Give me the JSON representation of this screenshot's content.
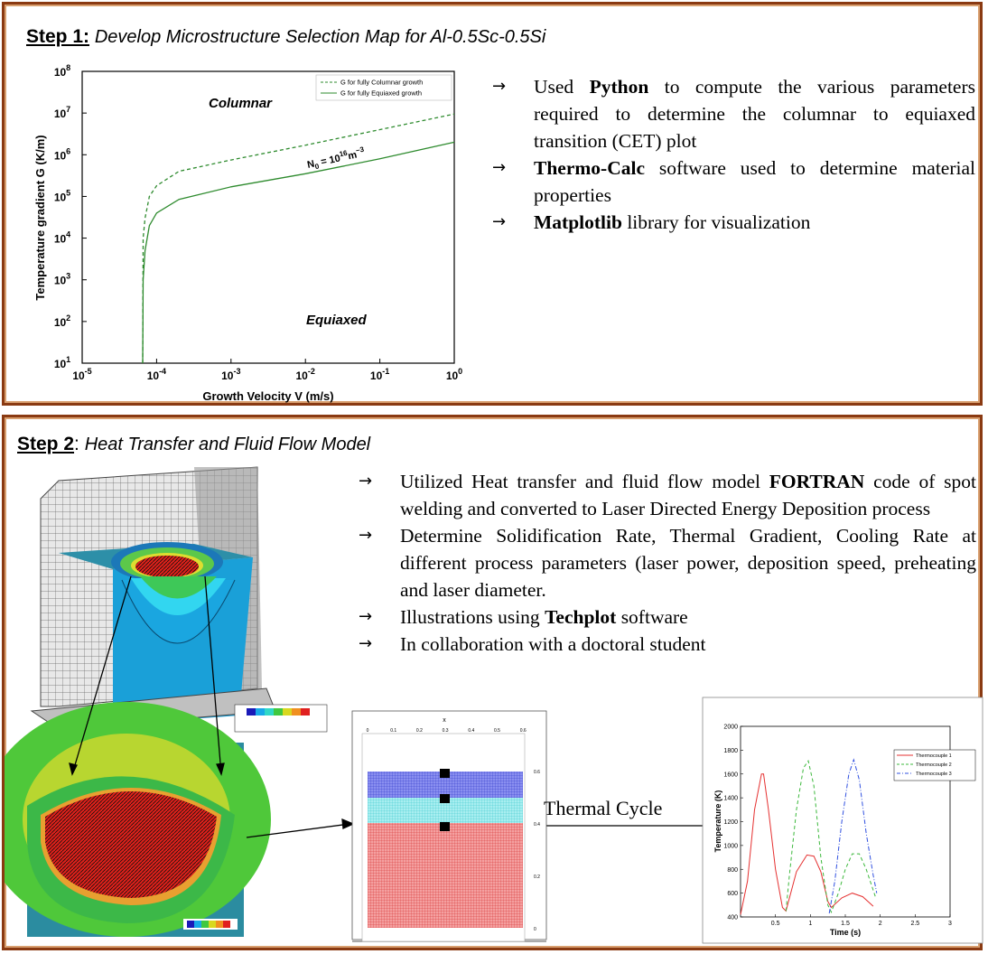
{
  "step1": {
    "label": "Step 1:",
    "title": "Develop Microstructure Selection Map for Al-0.5Sc-0.5Si",
    "bullets": [
      {
        "bold": "Python",
        "pre": "Used ",
        "post": " to compute the various parameters required to determine the columnar to equiaxed transition (CET) plot"
      },
      {
        "bold": "Thermo-Calc",
        "pre": "",
        "post": " software used to determine material properties"
      },
      {
        "bold": "Matplotlib",
        "pre": "",
        "post": " library for visualization"
      }
    ]
  },
  "step2": {
    "label": "Step 2",
    "sep": ": ",
    "title": "Heat Transfer and Fluid Flow Model",
    "bullets": [
      {
        "pre": "Utilized Heat transfer and fluid flow model ",
        "bold": "FORTRAN",
        "post": " code of spot welding and converted to Laser Directed Energy Deposition process"
      },
      {
        "pre": "Determine Solidification Rate, Thermal Gradient, Cooling Rate at different process parameters (laser power, deposition speed, preheating and laser diameter.",
        "bold": "",
        "post": ""
      },
      {
        "pre": "Illustrations using ",
        "bold": "Techplot",
        "post": " software"
      },
      {
        "pre": "In collaboration with a doctoral student",
        "bold": "",
        "post": ""
      }
    ],
    "thermal_cycle_label": "Thermal Cycle",
    "mesh_axis_label": "x",
    "mesh_ticks": [
      "0",
      "0.1",
      "0.2",
      "0.3",
      "0.4",
      "0.5",
      "0.6"
    ],
    "mesh_side_ticks": [
      "0.6",
      "0.4",
      "0.2",
      "0"
    ]
  },
  "chart_data": [
    {
      "type": "line",
      "title": "",
      "xlabel": "Growth Velocity V (m/s)",
      "ylabel": "Temperature gradient G (K/m)",
      "xscale": "log",
      "yscale": "log",
      "xlim": [
        1e-05,
        1
      ],
      "ylim": [
        10,
        100000000.0
      ],
      "xticks": [
        "10^-5",
        "10^-4",
        "10^-3",
        "10^-2",
        "10^-1",
        "10^0"
      ],
      "yticks": [
        "10^1",
        "10^2",
        "10^3",
        "10^4",
        "10^5",
        "10^6",
        "10^7",
        "10^8"
      ],
      "legend_position": "top-right",
      "annotations": [
        "Columnar",
        "Equiaxed",
        "N0 = 10^16 m^-3"
      ],
      "series": [
        {
          "name": "G for fully Columnar growth",
          "style": "dashed",
          "color": "#2e8b2e",
          "x": [
            6.5e-05,
            6.6e-05,
            7e-05,
            8e-05,
            0.0001,
            0.0002,
            0.001,
            0.01,
            0.1,
            1
          ],
          "y": [
            10,
            10000.0,
            30000.0,
            100000.0,
            180000.0,
            400000.0,
            750000.0,
            1700000.0,
            4000000.0,
            9500000.0
          ]
        },
        {
          "name": "G for fully Equiaxed growth",
          "style": "solid",
          "color": "#2e8b2e",
          "x": [
            6.5e-05,
            6.6e-05,
            7e-05,
            8e-05,
            0.0001,
            0.0002,
            0.001,
            0.01,
            0.1,
            1
          ],
          "y": [
            10,
            1000.0,
            5000.0,
            20000.0,
            40000.0,
            85000.0,
            170000.0,
            350000.0,
            800000.0,
            2000000.0
          ]
        }
      ]
    },
    {
      "type": "line",
      "title": "",
      "xlabel": "Time (s)",
      "ylabel": "Temperature (K)",
      "xlim": [
        0,
        3
      ],
      "ylim": [
        400,
        2000
      ],
      "xticks": [
        "0.5",
        "1",
        "1.5",
        "2",
        "2.5",
        "3"
      ],
      "yticks": [
        "400",
        "600",
        "800",
        "1000",
        "1200",
        "1400",
        "1600",
        "1800",
        "2000"
      ],
      "legend_position": "top-right",
      "series": [
        {
          "name": "Thermocouple 1",
          "color": "#e53030",
          "style": "solid",
          "x": [
            0,
            0.1,
            0.2,
            0.3,
            0.33,
            0.4,
            0.5,
            0.6,
            0.65,
            0.8,
            0.95,
            1.05,
            1.15,
            1.25,
            1.3,
            1.45,
            1.6,
            1.75,
            1.9
          ],
          "y": [
            420,
            700,
            1300,
            1600,
            1600,
            1300,
            800,
            480,
            450,
            780,
            920,
            910,
            780,
            530,
            480,
            560,
            600,
            570,
            490
          ]
        },
        {
          "name": "Thermocouple 2",
          "color": "#3cb83c",
          "style": "dashed",
          "x": [
            0.65,
            0.7,
            0.8,
            0.9,
            0.97,
            1.05,
            1.15,
            1.25,
            1.3,
            1.4,
            1.5,
            1.6,
            1.7,
            1.8,
            1.93
          ],
          "y": [
            450,
            750,
            1300,
            1650,
            1710,
            1500,
            900,
            500,
            440,
            600,
            800,
            930,
            930,
            800,
            570
          ]
        },
        {
          "name": "Thermocouple 3",
          "color": "#3050e0",
          "style": "dashdot",
          "x": [
            1.27,
            1.35,
            1.45,
            1.55,
            1.62,
            1.7,
            1.8,
            1.9,
            1.95
          ],
          "y": [
            430,
            700,
            1200,
            1600,
            1720,
            1550,
            1100,
            750,
            600
          ]
        }
      ]
    }
  ]
}
